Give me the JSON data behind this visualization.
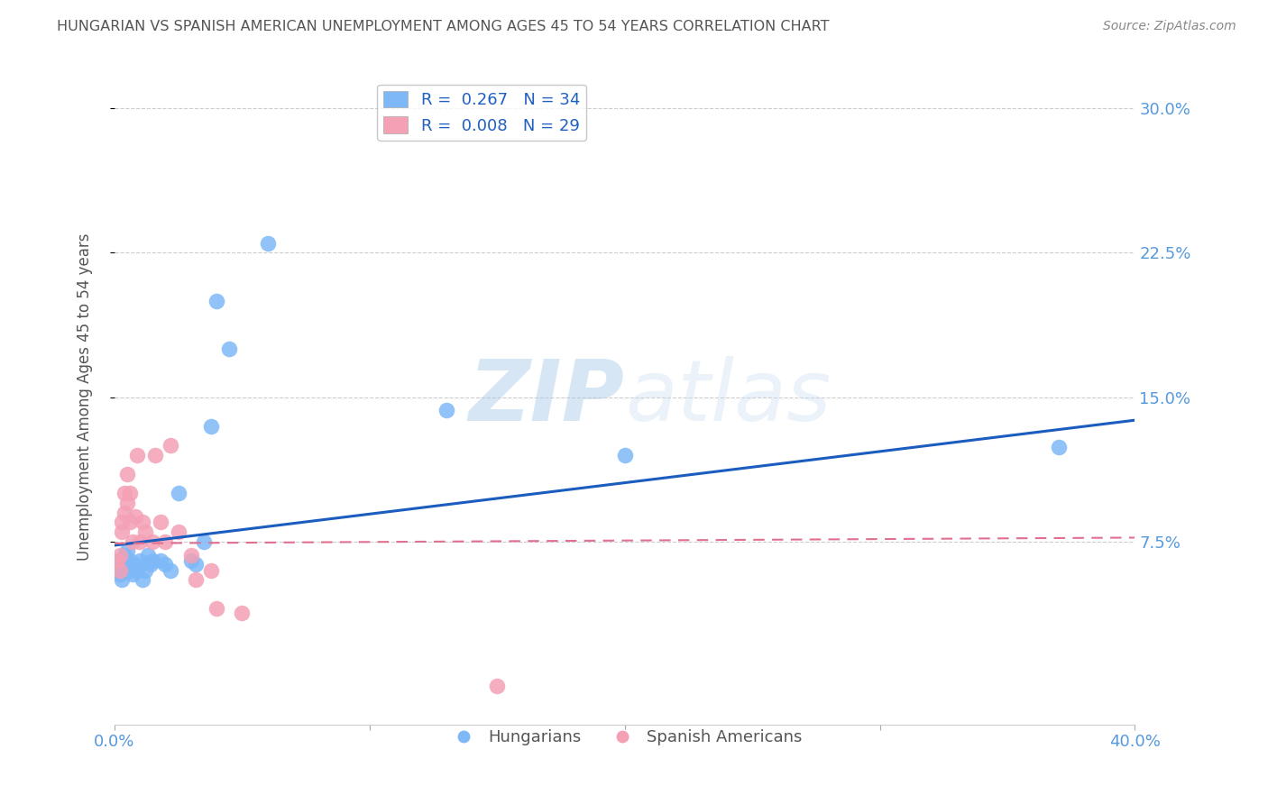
{
  "title": "HUNGARIAN VS SPANISH AMERICAN UNEMPLOYMENT AMONG AGES 45 TO 54 YEARS CORRELATION CHART",
  "source": "Source: ZipAtlas.com",
  "ylabel": "Unemployment Among Ages 45 to 54 years",
  "xlim": [
    0.0,
    0.4
  ],
  "ylim": [
    -0.02,
    0.32
  ],
  "yticks": [
    0.075,
    0.15,
    0.225,
    0.3
  ],
  "ytick_labels": [
    "7.5%",
    "15.0%",
    "22.5%",
    "30.0%"
  ],
  "xticks": [
    0.0,
    0.1,
    0.2,
    0.3,
    0.4
  ],
  "xtick_labels": [
    "0.0%",
    "",
    "",
    "",
    "40.0%"
  ],
  "hungarian_x": [
    0.001,
    0.002,
    0.002,
    0.003,
    0.003,
    0.004,
    0.004,
    0.005,
    0.005,
    0.006,
    0.006,
    0.007,
    0.008,
    0.009,
    0.01,
    0.011,
    0.012,
    0.013,
    0.014,
    0.015,
    0.018,
    0.02,
    0.022,
    0.025,
    0.03,
    0.032,
    0.035,
    0.038,
    0.04,
    0.045,
    0.06,
    0.13,
    0.2,
    0.37
  ],
  "hungarian_y": [
    0.06,
    0.058,
    0.065,
    0.055,
    0.062,
    0.06,
    0.068,
    0.063,
    0.07,
    0.06,
    0.065,
    0.058,
    0.063,
    0.06,
    0.065,
    0.055,
    0.06,
    0.068,
    0.063,
    0.065,
    0.065,
    0.063,
    0.06,
    0.1,
    0.065,
    0.063,
    0.075,
    0.135,
    0.2,
    0.175,
    0.23,
    0.143,
    0.12,
    0.124
  ],
  "spanish_x": [
    0.001,
    0.002,
    0.002,
    0.003,
    0.003,
    0.004,
    0.004,
    0.005,
    0.005,
    0.006,
    0.006,
    0.007,
    0.008,
    0.009,
    0.01,
    0.011,
    0.012,
    0.015,
    0.016,
    0.018,
    0.02,
    0.022,
    0.025,
    0.03,
    0.032,
    0.038,
    0.04,
    0.05,
    0.15
  ],
  "spanish_y": [
    0.065,
    0.06,
    0.068,
    0.08,
    0.085,
    0.09,
    0.1,
    0.095,
    0.11,
    0.085,
    0.1,
    0.075,
    0.088,
    0.12,
    0.075,
    0.085,
    0.08,
    0.075,
    0.12,
    0.085,
    0.075,
    0.125,
    0.08,
    0.068,
    0.055,
    0.06,
    0.04,
    0.038,
    0.0
  ],
  "hungarian_color": "#7EB8F7",
  "spanish_color": "#F4A0B5",
  "hungarian_line_color": "#1A5DBE",
  "spanish_line_color": "#E07090",
  "legend_R_hungarian": "R =  0.267",
  "legend_N_hungarian": "N = 34",
  "legend_R_spanish": "R =  0.008",
  "legend_N_spanish": "N = 29",
  "watermark_zip": "ZIP",
  "watermark_atlas": "atlas",
  "background_color": "#FFFFFF",
  "grid_color": "#CCCCCC",
  "title_color": "#555555",
  "axis_label_color": "#555555",
  "tick_color": "#5599DD",
  "source_color": "#888888"
}
